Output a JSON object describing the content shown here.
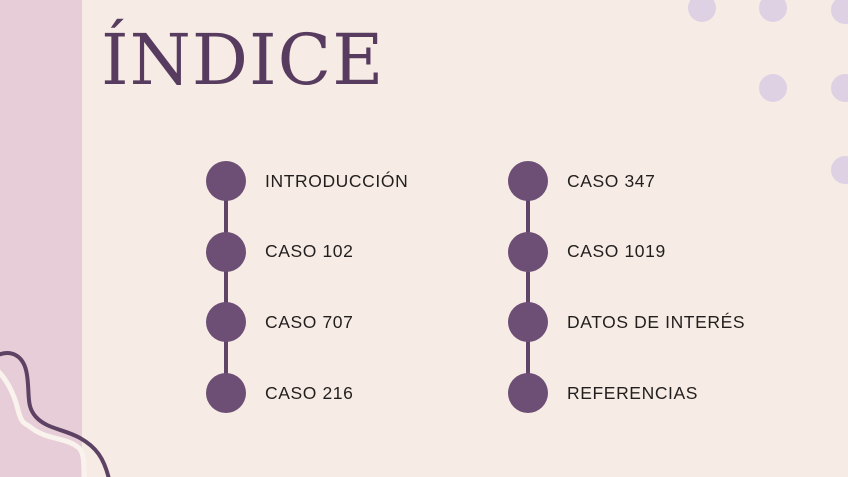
{
  "slide": {
    "title": "ÍNDICE"
  },
  "toc": {
    "columns": [
      {
        "items": [
          "INTRODUCCIÓN",
          "CASO 102",
          "CASO 707",
          "CASO 216"
        ]
      },
      {
        "items": [
          "CASO 347",
          "CASO 1019",
          "DATOS DE INTERÉS",
          "REFERENCIAS"
        ]
      }
    ]
  },
  "colors": {
    "background": "#f6ece5",
    "left_band": "#e7cdd7",
    "dots": "#ded1e4",
    "bullet": "#6d4e75",
    "connector": "#5f4468",
    "title": "#573c60",
    "item_text": "#221e1d",
    "squiggle_purple": "#5d4263",
    "squiggle_white": "#f9f2ed"
  },
  "decor": {
    "dot_pattern": "dot-grid-top-right",
    "squiggles": [
      "purple-wavy-line",
      "white-wavy-line"
    ]
  }
}
